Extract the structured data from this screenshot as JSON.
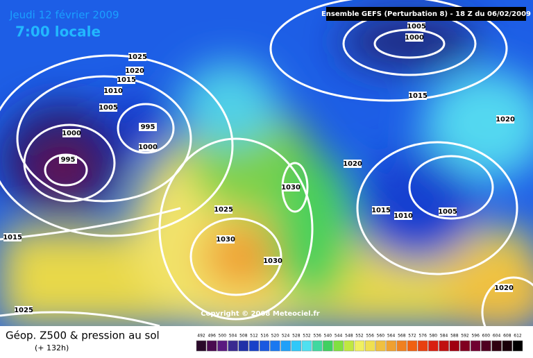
{
  "header": {
    "date": "Jeudi 12 février 2009",
    "time": "7:00 locale",
    "run": "Ensemble GEFS (Perturbation 8)  - 18 Z du 06/02/2009"
  },
  "isobar_labels": [
    "1025",
    "1020",
    "1015",
    "1010",
    "1005",
    "1000",
    "995",
    "995",
    "1000",
    "1005",
    "1000",
    "1015",
    "1020",
    "1020",
    "1030",
    "1025",
    "1030",
    "1030",
    "1015",
    "1010",
    "1005",
    "1015",
    "1025",
    "1020"
  ],
  "copyright": "Copyright © 2008 Meteociel.fr",
  "legend": {
    "title": "Géop. Z500 & pression au sol",
    "subtitle": "(+ 132h)",
    "scale": [
      "492",
      "496",
      "500",
      "504",
      "508",
      "512",
      "516",
      "520",
      "524",
      "528",
      "532",
      "536",
      "540",
      "544",
      "548",
      "552",
      "556",
      "560",
      "564",
      "568",
      "572",
      "576",
      "580",
      "584",
      "588",
      "592",
      "596",
      "600",
      "604",
      "608",
      "612"
    ]
  }
}
